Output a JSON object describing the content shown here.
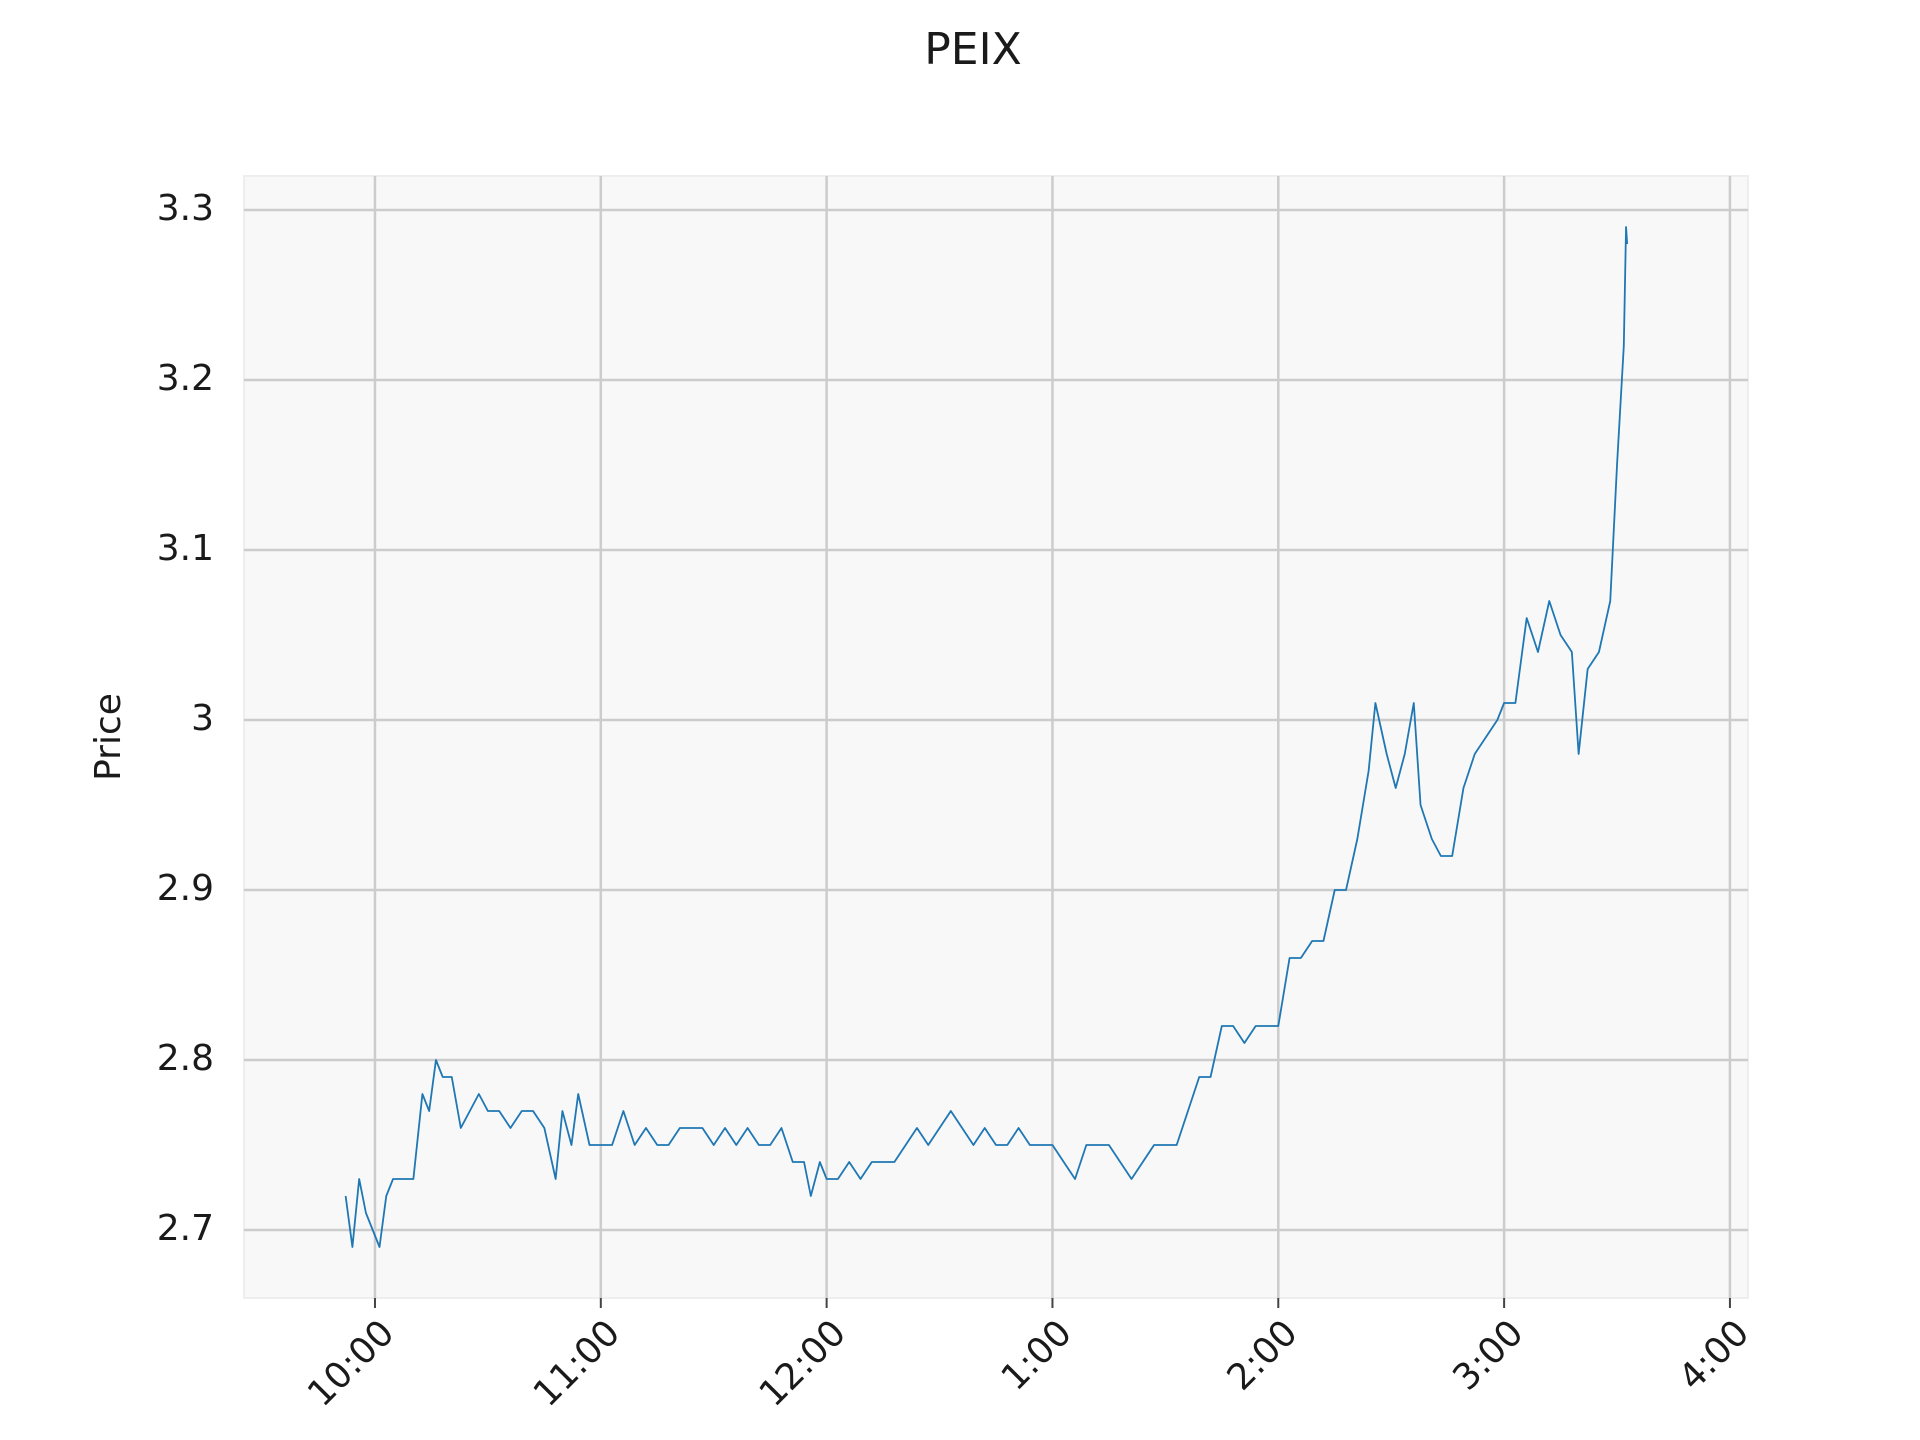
{
  "chart_data": {
    "type": "line",
    "title": "PEIX",
    "y_label": "Price",
    "color": "#1f77b4",
    "grid": true,
    "x": [
      9.87,
      9.9,
      9.93,
      9.96,
      9.99,
      10.02,
      10.05,
      10.08,
      10.12,
      10.17,
      10.21,
      10.24,
      10.27,
      10.3,
      10.34,
      10.38,
      10.42,
      10.46,
      10.5,
      10.55,
      10.6,
      10.65,
      10.7,
      10.75,
      10.8,
      10.83,
      10.87,
      10.9,
      10.95,
      11.0,
      11.05,
      11.1,
      11.15,
      11.2,
      11.25,
      11.3,
      11.35,
      11.4,
      11.45,
      11.5,
      11.55,
      11.6,
      11.65,
      11.7,
      11.75,
      11.8,
      11.85,
      11.9,
      11.93,
      11.97,
      12.0,
      12.05,
      12.1,
      12.15,
      12.2,
      12.25,
      12.3,
      12.35,
      12.4,
      12.45,
      12.5,
      12.55,
      12.6,
      12.65,
      12.7,
      12.75,
      12.8,
      12.85,
      12.9,
      12.95,
      13.0,
      13.05,
      13.1,
      13.15,
      13.2,
      13.25,
      13.3,
      13.35,
      13.4,
      13.45,
      13.5,
      13.55,
      13.6,
      13.65,
      13.7,
      13.75,
      13.8,
      13.85,
      13.9,
      13.95,
      14.0,
      14.05,
      14.1,
      14.15,
      14.2,
      14.25,
      14.3,
      14.35,
      14.4,
      14.43,
      14.48,
      14.52,
      14.56,
      14.6,
      14.63,
      14.68,
      14.72,
      14.77,
      14.82,
      14.87,
      14.92,
      14.97,
      15.0,
      15.05,
      15.1,
      15.15,
      15.2,
      15.25,
      15.3,
      15.33,
      15.37,
      15.42,
      15.47,
      15.5,
      15.53,
      15.54,
      15.545
    ],
    "values": [
      2.72,
      2.69,
      2.73,
      2.71,
      2.7,
      2.69,
      2.72,
      2.73,
      2.73,
      2.73,
      2.78,
      2.77,
      2.8,
      2.79,
      2.79,
      2.76,
      2.77,
      2.78,
      2.77,
      2.77,
      2.76,
      2.77,
      2.77,
      2.76,
      2.73,
      2.77,
      2.75,
      2.78,
      2.75,
      2.75,
      2.75,
      2.77,
      2.75,
      2.76,
      2.75,
      2.75,
      2.76,
      2.76,
      2.76,
      2.75,
      2.76,
      2.75,
      2.76,
      2.75,
      2.75,
      2.76,
      2.74,
      2.74,
      2.72,
      2.74,
      2.73,
      2.73,
      2.74,
      2.73,
      2.74,
      2.74,
      2.74,
      2.75,
      2.76,
      2.75,
      2.76,
      2.77,
      2.76,
      2.75,
      2.76,
      2.75,
      2.75,
      2.76,
      2.75,
      2.75,
      2.75,
      2.74,
      2.73,
      2.75,
      2.75,
      2.75,
      2.74,
      2.73,
      2.74,
      2.75,
      2.75,
      2.75,
      2.77,
      2.79,
      2.79,
      2.82,
      2.82,
      2.81,
      2.82,
      2.82,
      2.82,
      2.86,
      2.86,
      2.87,
      2.87,
      2.9,
      2.9,
      2.93,
      2.97,
      3.01,
      2.98,
      2.96,
      2.98,
      3.01,
      2.95,
      2.93,
      2.92,
      2.92,
      2.96,
      2.98,
      2.99,
      3.0,
      3.01,
      3.01,
      3.06,
      3.04,
      3.07,
      3.05,
      3.04,
      2.98,
      3.03,
      3.04,
      3.07,
      3.15,
      3.22,
      3.29,
      3.28
    ],
    "xlim": [
      9.42,
      16.08
    ],
    "xticks": [
      {
        "value": 10,
        "label": "10:00"
      },
      {
        "value": 11,
        "label": "11:00"
      },
      {
        "value": 12,
        "label": "12:00"
      },
      {
        "value": 13,
        "label": "1:00"
      },
      {
        "value": 14,
        "label": "2:00"
      },
      {
        "value": 15,
        "label": "3:00"
      },
      {
        "value": 16,
        "label": "4:00"
      }
    ],
    "ylim": [
      2.66,
      3.32
    ],
    "yticks": [
      2.7,
      2.8,
      2.9,
      3.0,
      3.1,
      3.2,
      3.3
    ]
  }
}
